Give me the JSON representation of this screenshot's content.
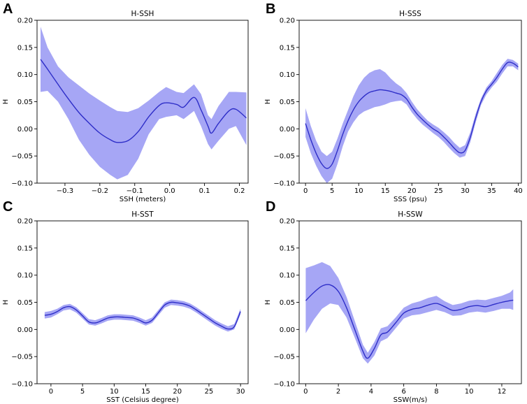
{
  "chart_data": [
    {
      "letter": "A",
      "type": "line",
      "title": "H-SSH",
      "xlabel": "SSH (meters)",
      "ylabel": "H",
      "xlim": [
        -0.38,
        0.225
      ],
      "ylim": [
        -0.1,
        0.2
      ],
      "xticks": [
        -0.3,
        -0.2,
        -0.1,
        0.0,
        0.1,
        0.2
      ],
      "xtick_labels": [
        "−0.3",
        "−0.2",
        "−0.1",
        "0.0",
        "0.1",
        "0.2"
      ],
      "yticks": [
        -0.1,
        -0.05,
        0.0,
        0.05,
        0.1,
        0.15,
        0.2
      ],
      "ytick_labels": [
        "−0.10",
        "−0.05",
        "0.00",
        "0.05",
        "0.10",
        "0.15",
        "0.20"
      ],
      "x": [
        -0.37,
        -0.35,
        -0.32,
        -0.29,
        -0.26,
        -0.23,
        -0.2,
        -0.17,
        -0.15,
        -0.12,
        -0.09,
        -0.06,
        -0.03,
        -0.01,
        0.02,
        0.04,
        0.07,
        0.09,
        0.11,
        0.12,
        0.14,
        0.17,
        0.19,
        0.22
      ],
      "mean": [
        0.128,
        0.11,
        0.082,
        0.055,
        0.03,
        0.01,
        -0.008,
        -0.02,
        -0.025,
        -0.022,
        -0.005,
        0.022,
        0.043,
        0.048,
        0.045,
        0.04,
        0.058,
        0.035,
        0.005,
        -0.008,
        0.01,
        0.033,
        0.036,
        0.02
      ],
      "upper": [
        0.188,
        0.15,
        0.115,
        0.095,
        0.08,
        0.065,
        0.052,
        0.04,
        0.033,
        0.031,
        0.038,
        0.052,
        0.068,
        0.077,
        0.068,
        0.066,
        0.082,
        0.064,
        0.025,
        0.018,
        0.042,
        0.068,
        0.068,
        0.067
      ],
      "lower": [
        0.068,
        0.07,
        0.05,
        0.018,
        -0.02,
        -0.048,
        -0.07,
        -0.085,
        -0.093,
        -0.085,
        -0.055,
        -0.01,
        0.018,
        0.022,
        0.025,
        0.018,
        0.033,
        0.005,
        -0.028,
        -0.038,
        -0.022,
        0.0,
        0.005,
        -0.03
      ]
    },
    {
      "letter": "B",
      "type": "line",
      "title": "H-SSS",
      "xlabel": "SSS (psu)",
      "ylabel": "H",
      "xlim": [
        -1.2,
        40.6
      ],
      "ylim": [
        -0.1,
        0.2
      ],
      "xticks": [
        0,
        5,
        10,
        15,
        20,
        25,
        30,
        35,
        40
      ],
      "xtick_labels": [
        "0",
        "5",
        "10",
        "15",
        "20",
        "25",
        "30",
        "35",
        "40"
      ],
      "yticks": [
        -0.1,
        -0.05,
        0.0,
        0.05,
        0.1,
        0.15,
        0.2
      ],
      "ytick_labels": [
        "−0.10",
        "−0.05",
        "0.00",
        "0.05",
        "0.10",
        "0.15",
        "0.20"
      ],
      "x": [
        0,
        1,
        2,
        3,
        4,
        5,
        6,
        7,
        8,
        9,
        10,
        11,
        12,
        13,
        14,
        15,
        16,
        17,
        18,
        19,
        20,
        21,
        22,
        23,
        24,
        25,
        26,
        27,
        28,
        29,
        30,
        31,
        32,
        33,
        34,
        35,
        36,
        37,
        38,
        39,
        40
      ],
      "mean": [
        0.01,
        -0.02,
        -0.045,
        -0.064,
        -0.073,
        -0.065,
        -0.04,
        -0.01,
        0.015,
        0.035,
        0.05,
        0.06,
        0.067,
        0.07,
        0.072,
        0.071,
        0.069,
        0.066,
        0.063,
        0.055,
        0.04,
        0.027,
        0.017,
        0.008,
        0.0,
        -0.006,
        -0.015,
        -0.025,
        -0.036,
        -0.044,
        -0.04,
        -0.015,
        0.02,
        0.05,
        0.07,
        0.082,
        0.095,
        0.11,
        0.122,
        0.121,
        0.114
      ],
      "upper": [
        0.038,
        0.005,
        -0.022,
        -0.042,
        -0.05,
        -0.042,
        -0.018,
        0.01,
        0.035,
        0.06,
        0.08,
        0.094,
        0.103,
        0.108,
        0.11,
        0.104,
        0.093,
        0.084,
        0.077,
        0.066,
        0.05,
        0.036,
        0.025,
        0.015,
        0.008,
        0.002,
        -0.006,
        -0.015,
        -0.026,
        -0.035,
        -0.03,
        -0.006,
        0.028,
        0.056,
        0.076,
        0.088,
        0.103,
        0.118,
        0.129,
        0.127,
        0.12
      ],
      "lower": [
        -0.015,
        -0.045,
        -0.068,
        -0.087,
        -0.1,
        -0.092,
        -0.065,
        -0.032,
        -0.005,
        0.012,
        0.025,
        0.032,
        0.036,
        0.04,
        0.042,
        0.045,
        0.049,
        0.051,
        0.052,
        0.045,
        0.03,
        0.018,
        0.008,
        0.0,
        -0.008,
        -0.015,
        -0.024,
        -0.035,
        -0.045,
        -0.053,
        -0.05,
        -0.024,
        0.012,
        0.044,
        0.063,
        0.076,
        0.087,
        0.102,
        0.115,
        0.115,
        0.108
      ]
    },
    {
      "letter": "C",
      "type": "line",
      "title": "H-SST",
      "xlabel": "SST (Celsius degree)",
      "ylabel": "H",
      "xlim": [
        -2.2,
        31.2
      ],
      "ylim": [
        -0.1,
        0.2
      ],
      "xticks": [
        0,
        5,
        10,
        15,
        20,
        25,
        30
      ],
      "xtick_labels": [
        "0",
        "5",
        "10",
        "15",
        "20",
        "25",
        "30"
      ],
      "yticks": [
        -0.1,
        -0.05,
        0.0,
        0.05,
        0.1,
        0.15,
        0.2
      ],
      "ytick_labels": [
        "−0.10",
        "−0.05",
        "0.00",
        "0.05",
        "0.10",
        "0.15",
        "0.20"
      ],
      "x": [
        -1,
        0,
        1,
        2,
        3,
        4,
        5,
        6,
        7,
        8,
        9,
        10,
        11,
        12,
        13,
        14,
        15,
        16,
        17,
        18,
        19,
        20,
        21,
        22,
        23,
        24,
        25,
        26,
        27,
        28,
        29,
        30
      ],
      "mean": [
        0.026,
        0.028,
        0.033,
        0.04,
        0.042,
        0.036,
        0.025,
        0.014,
        0.012,
        0.016,
        0.021,
        0.023,
        0.023,
        0.022,
        0.021,
        0.017,
        0.012,
        0.017,
        0.031,
        0.045,
        0.05,
        0.049,
        0.047,
        0.043,
        0.036,
        0.028,
        0.02,
        0.012,
        0.006,
        0.001,
        0.005,
        0.033
      ],
      "upper": [
        0.032,
        0.034,
        0.038,
        0.045,
        0.047,
        0.041,
        0.03,
        0.019,
        0.017,
        0.021,
        0.026,
        0.028,
        0.028,
        0.027,
        0.026,
        0.022,
        0.017,
        0.022,
        0.036,
        0.05,
        0.055,
        0.054,
        0.052,
        0.048,
        0.041,
        0.033,
        0.025,
        0.017,
        0.011,
        0.006,
        0.01,
        0.038
      ],
      "lower": [
        0.02,
        0.022,
        0.028,
        0.035,
        0.037,
        0.031,
        0.02,
        0.009,
        0.007,
        0.011,
        0.016,
        0.018,
        0.018,
        0.017,
        0.016,
        0.012,
        0.007,
        0.012,
        0.026,
        0.04,
        0.045,
        0.044,
        0.042,
        0.038,
        0.031,
        0.023,
        0.015,
        0.007,
        0.001,
        -0.004,
        0.0,
        0.028
      ]
    },
    {
      "letter": "D",
      "type": "line",
      "title": "H-SSW",
      "xlabel": "SSW(m/s)",
      "ylabel": "H",
      "xlim": [
        -0.4,
        13.2
      ],
      "ylim": [
        -0.1,
        0.2
      ],
      "xticks": [
        0,
        2,
        4,
        6,
        8,
        10,
        12
      ],
      "xtick_labels": [
        "0",
        "2",
        "4",
        "6",
        "8",
        "10",
        "12"
      ],
      "yticks": [
        -0.1,
        -0.05,
        0.0,
        0.05,
        0.1,
        0.15,
        0.2
      ],
      "ytick_labels": [
        "−0.10",
        "−0.05",
        "0.00",
        "0.05",
        "0.10",
        "0.15",
        "0.20"
      ],
      "x": [
        0,
        0.5,
        1.0,
        1.5,
        2.0,
        2.5,
        3.0,
        3.5,
        3.8,
        4.2,
        4.6,
        5.0,
        5.5,
        6.0,
        6.5,
        7.0,
        7.5,
        8.0,
        8.5,
        9.0,
        9.5,
        10.0,
        10.5,
        11.0,
        11.5,
        12.0,
        12.5,
        12.7
      ],
      "mean": [
        0.053,
        0.068,
        0.08,
        0.082,
        0.07,
        0.04,
        0.0,
        -0.04,
        -0.053,
        -0.035,
        -0.01,
        -0.005,
        0.012,
        0.03,
        0.037,
        0.04,
        0.045,
        0.048,
        0.042,
        0.035,
        0.037,
        0.042,
        0.044,
        0.042,
        0.046,
        0.05,
        0.053,
        0.054
      ],
      "upper": [
        0.113,
        0.118,
        0.124,
        0.117,
        0.095,
        0.06,
        0.016,
        -0.028,
        -0.043,
        -0.023,
        0.002,
        0.006,
        0.022,
        0.04,
        0.048,
        0.052,
        0.058,
        0.062,
        0.052,
        0.045,
        0.048,
        0.053,
        0.055,
        0.054,
        0.058,
        0.062,
        0.068,
        0.074
      ],
      "lower": [
        -0.007,
        0.018,
        0.038,
        0.048,
        0.045,
        0.022,
        -0.015,
        -0.053,
        -0.063,
        -0.048,
        -0.022,
        -0.016,
        0.002,
        0.02,
        0.026,
        0.028,
        0.032,
        0.036,
        0.032,
        0.025,
        0.026,
        0.031,
        0.033,
        0.031,
        0.034,
        0.038,
        0.038,
        0.036
      ]
    }
  ]
}
